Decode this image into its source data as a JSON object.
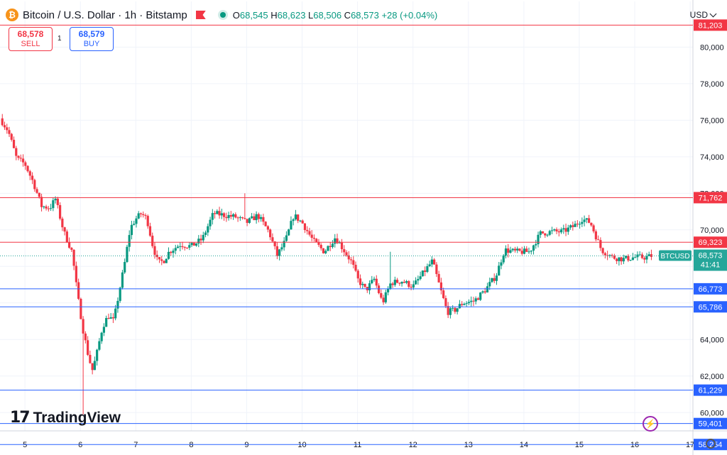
{
  "header": {
    "title": "Bitcoin / U.S. Dollar · 1h · Bitstamp",
    "open_label": "O",
    "open": "68,545",
    "high_label": "H",
    "high": "68,623",
    "low_label": "L",
    "low": "68,506",
    "close_label": "C",
    "close": "68,573",
    "change": "+28 (+0.04%)"
  },
  "trade": {
    "sell_price": "68,578",
    "sell_label": "SELL",
    "spread": "1",
    "buy_price": "68,579",
    "buy_label": "BUY"
  },
  "currency": "USD",
  "branding": "TradingView",
  "icons": [
    "bitcoin-icon",
    "flag-icon",
    "live-dot-icon",
    "chevron-down-icon",
    "flash-icon",
    "gear-icon"
  ],
  "colors": {
    "up": "#089981",
    "down": "#f23645",
    "support": "#2962ff",
    "resistance": "#f23645",
    "price": "#26a69a"
  },
  "chart_data": {
    "type": "candlestick",
    "symbol": "BTCUSD",
    "timeframe": "1h",
    "ylim": [
      59000,
      82500
    ],
    "yticks": [
      60000,
      62000,
      64000,
      66000,
      68000,
      70000,
      72000,
      74000,
      76000,
      78000,
      80000
    ],
    "ytick_labels": [
      "60,000",
      "62,000",
      "64,000",
      "",
      "",
      "70,000",
      "72,000",
      "74,000",
      "76,000",
      "78,000",
      "80,000"
    ],
    "xlim": [
      4.55,
      17.05
    ],
    "xticks": [
      5,
      6,
      7,
      8,
      9,
      10,
      11,
      12,
      13,
      14,
      15,
      16,
      17
    ],
    "xtick_labels": [
      "5",
      "6",
      "7",
      "8",
      "9",
      "10",
      "11",
      "12",
      "13",
      "14",
      "15",
      "16",
      "17"
    ],
    "grid": true,
    "current_price": {
      "label": "BTCUSD",
      "value": "68,573",
      "countdown": "41:41",
      "y": 68573
    },
    "horizontal_lines": [
      {
        "value": 81203,
        "label": "81,203",
        "kind": "resistance"
      },
      {
        "value": 71762,
        "label": "71,762",
        "kind": "resistance"
      },
      {
        "value": 69323,
        "label": "69,323",
        "kind": "resistance"
      },
      {
        "value": 66773,
        "label": "66,773",
        "kind": "support"
      },
      {
        "value": 65786,
        "label": "65,786",
        "kind": "support"
      },
      {
        "value": 61229,
        "label": "61,229",
        "kind": "support"
      },
      {
        "value": 59401,
        "label": "59,401",
        "kind": "support"
      },
      {
        "value": 58254,
        "label": "58,254",
        "kind": "support"
      }
    ],
    "price_path": [
      [
        4.55,
        76100
      ],
      [
        4.7,
        75400
      ],
      [
        4.85,
        73900
      ],
      [
        5.0,
        73600
      ],
      [
        5.15,
        72600
      ],
      [
        5.3,
        71300
      ],
      [
        5.45,
        71200
      ],
      [
        5.55,
        71700
      ],
      [
        5.7,
        69900
      ],
      [
        5.85,
        68800
      ],
      [
        5.95,
        66400
      ],
      [
        6.05,
        64500
      ],
      [
        6.15,
        63000
      ],
      [
        6.22,
        62300
      ],
      [
        6.3,
        63300
      ],
      [
        6.4,
        64700
      ],
      [
        6.5,
        65300
      ],
      [
        6.6,
        65000
      ],
      [
        6.7,
        66600
      ],
      [
        6.8,
        68200
      ],
      [
        6.9,
        70100
      ],
      [
        7.0,
        70600
      ],
      [
        7.1,
        70900
      ],
      [
        7.2,
        70600
      ],
      [
        7.3,
        69200
      ],
      [
        7.4,
        68200
      ],
      [
        7.5,
        68300
      ],
      [
        7.6,
        68800
      ],
      [
        7.8,
        69200
      ],
      [
        8.0,
        69100
      ],
      [
        8.2,
        69500
      ],
      [
        8.4,
        70900
      ],
      [
        8.6,
        70800
      ],
      [
        8.8,
        70700
      ],
      [
        9.0,
        70400
      ],
      [
        9.2,
        70800
      ],
      [
        9.4,
        69900
      ],
      [
        9.55,
        68600
      ],
      [
        9.7,
        69400
      ],
      [
        9.85,
        70800
      ],
      [
        10.0,
        70400
      ],
      [
        10.2,
        69400
      ],
      [
        10.4,
        68800
      ],
      [
        10.6,
        69600
      ],
      [
        10.75,
        68900
      ],
      [
        10.9,
        68200
      ],
      [
        11.0,
        67300
      ],
      [
        11.15,
        66700
      ],
      [
        11.3,
        67300
      ],
      [
        11.45,
        66000
      ],
      [
        11.6,
        67100
      ],
      [
        11.8,
        67200
      ],
      [
        12.0,
        66900
      ],
      [
        12.2,
        67700
      ],
      [
        12.35,
        68300
      ],
      [
        12.5,
        66700
      ],
      [
        12.62,
        65500
      ],
      [
        12.75,
        65600
      ],
      [
        12.9,
        66000
      ],
      [
        13.1,
        66100
      ],
      [
        13.3,
        66700
      ],
      [
        13.5,
        67500
      ],
      [
        13.65,
        68900
      ],
      [
        13.85,
        68800
      ],
      [
        14.1,
        68800
      ],
      [
        14.3,
        69800
      ],
      [
        14.5,
        69900
      ],
      [
        14.7,
        69900
      ],
      [
        14.9,
        70200
      ],
      [
        15.05,
        70600
      ],
      [
        15.2,
        70400
      ],
      [
        15.4,
        68900
      ],
      [
        15.6,
        68500
      ],
      [
        15.8,
        68400
      ],
      [
        16.0,
        68500
      ],
      [
        16.2,
        68500
      ],
      [
        16.3,
        68573
      ]
    ]
  }
}
